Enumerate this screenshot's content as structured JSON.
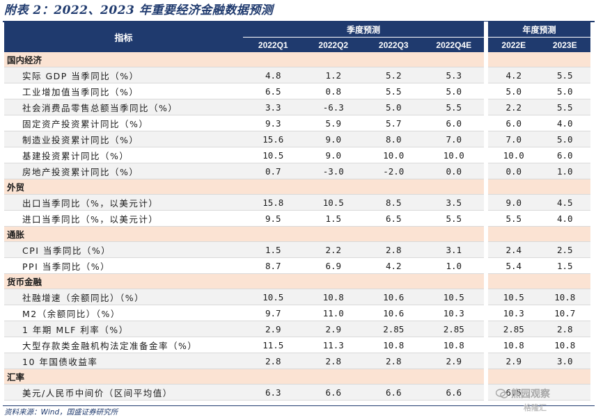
{
  "title": "附表 2：2022、2023 年重要经济金融数据预测",
  "header": {
    "indicator": "指标",
    "quarterly": "季度预测",
    "annual": "年度预测",
    "columns": [
      "2022Q1",
      "2022Q2",
      "2022Q3",
      "2022Q4E",
      "2022E",
      "2023E"
    ]
  },
  "sections": [
    {
      "name": "国内经济",
      "rows": [
        {
          "label": "实际 GDP 当季同比（%）",
          "values": [
            "4.8",
            "1.2",
            "5.2",
            "5.3",
            "4.2",
            "5.5"
          ]
        },
        {
          "label": "工业增加值当季同比（%）",
          "values": [
            "6.5",
            "0.8",
            "5.5",
            "5.0",
            "5.0",
            "5.0"
          ]
        },
        {
          "label": "社会消费品零售总额当季同比（%）",
          "values": [
            "3.3",
            "-6.3",
            "5.0",
            "5.5",
            "2.2",
            "5.5"
          ]
        },
        {
          "label": "固定资产投资累计同比（%）",
          "values": [
            "9.3",
            "5.9",
            "5.7",
            "6.0",
            "6.0",
            "4.0"
          ]
        },
        {
          "label": "制造业投资累计同比（%）",
          "values": [
            "15.6",
            "9.0",
            "8.0",
            "7.0",
            "7.0",
            "5.0"
          ]
        },
        {
          "label": "基建投资累计同比（%）",
          "values": [
            "10.5",
            "9.0",
            "10.0",
            "10.0",
            "10.0",
            "6.0"
          ]
        },
        {
          "label": "房地产投资累计同比（%）",
          "values": [
            "0.7",
            "-3.0",
            "-2.0",
            "0.0",
            "0.0",
            "1.0"
          ]
        }
      ]
    },
    {
      "name": "外贸",
      "rows": [
        {
          "label": "出口当季同比（%，以美元计）",
          "values": [
            "15.8",
            "10.5",
            "8.5",
            "3.5",
            "9.0",
            "4.5"
          ]
        },
        {
          "label": "进口当季同比（%，以美元计）",
          "values": [
            "9.5",
            "1.5",
            "6.5",
            "5.5",
            "5.5",
            "4.0"
          ]
        }
      ]
    },
    {
      "name": "通胀",
      "rows": [
        {
          "label": "CPI 当季同比（%）",
          "values": [
            "1.5",
            "2.2",
            "2.8",
            "3.1",
            "2.4",
            "2.5"
          ]
        },
        {
          "label": "PPI 当季同比（%）",
          "values": [
            "8.7",
            "6.9",
            "4.2",
            "1.0",
            "5.4",
            "1.5"
          ]
        }
      ]
    },
    {
      "name": "货币金融",
      "rows": [
        {
          "label": "社融增速（余额同比）（%）",
          "values": [
            "10.5",
            "10.8",
            "10.6",
            "10.5",
            "10.5",
            "10.8"
          ]
        },
        {
          "label": "M2（余额同比）（%）",
          "values": [
            "9.7",
            "11.0",
            "10.6",
            "10.3",
            "10.3",
            "10.7"
          ]
        },
        {
          "label": "1 年期 MLF 利率（%）",
          "values": [
            "2.9",
            "2.9",
            "2.85",
            "2.85",
            "2.85",
            "2.8"
          ]
        },
        {
          "label": "大型存款类金融机构法定准备金率（%）",
          "values": [
            "11.5",
            "11.3",
            "10.8",
            "10.8",
            "10.8",
            "10.8"
          ]
        },
        {
          "label": "10 年国债收益率",
          "values": [
            "2.8",
            "2.8",
            "2.8",
            "2.9",
            "2.9",
            "3.0"
          ]
        }
      ]
    },
    {
      "name": "汇率",
      "rows": [
        {
          "label": "美元/人民币中间价（区间平均值）",
          "values": [
            "6.3",
            "6.6",
            "6.6",
            "6.6",
            "6.5",
            ""
          ]
        }
      ]
    }
  ],
  "source": "资料来源：Wind，国盛证券研究所",
  "watermark": {
    "line1": "熊园观察",
    "line2": "格隆汇"
  }
}
